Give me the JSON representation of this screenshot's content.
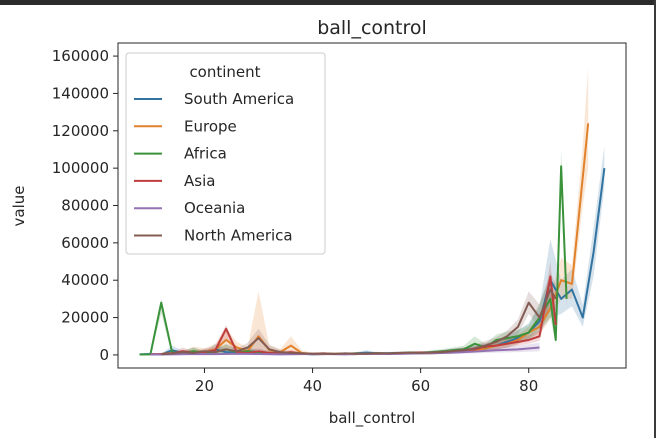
{
  "chart_data": {
    "type": "line",
    "title": "ball_control",
    "xlabel": "ball_control",
    "ylabel": "value",
    "xlim": [
      4,
      98
    ],
    "ylim": [
      -7000,
      167000
    ],
    "xticks": [
      20,
      40,
      60,
      80
    ],
    "yticks": [
      0,
      20000,
      40000,
      60000,
      80000,
      100000,
      120000,
      140000,
      160000
    ],
    "ytick_labels": [
      "0",
      "20000",
      "40000",
      "60000",
      "80000",
      "100000",
      "120000",
      "140000",
      "160000"
    ],
    "grid": false,
    "legend": {
      "title": "continent",
      "placement": "top-left"
    },
    "series": [
      {
        "name": "South America",
        "color": "#3274a1",
        "x": [
          8,
          10,
          12,
          14,
          16,
          18,
          20,
          22,
          24,
          26,
          28,
          30,
          32,
          34,
          36,
          38,
          40,
          42,
          44,
          46,
          48,
          50,
          52,
          54,
          56,
          58,
          60,
          62,
          64,
          66,
          68,
          70,
          72,
          74,
          76,
          78,
          80,
          82,
          84,
          86,
          88,
          90,
          92,
          94
        ],
        "y": [
          300,
          500,
          200,
          2500,
          1000,
          2000,
          800,
          3000,
          1500,
          1000,
          2000,
          1500,
          1000,
          800,
          500,
          700,
          300,
          500,
          600,
          400,
          800,
          1200,
          800,
          900,
          1000,
          800,
          1000,
          1200,
          1500,
          2000,
          2500,
          3000,
          4000,
          5000,
          7000,
          9000,
          12000,
          18000,
          40000,
          30000,
          35000,
          20000,
          55000,
          100000
        ],
        "band_lo": [
          0,
          0,
          0,
          500,
          200,
          500,
          200,
          1000,
          500,
          200,
          500,
          300,
          200,
          200,
          100,
          200,
          100,
          100,
          200,
          100,
          200,
          400,
          300,
          300,
          300,
          300,
          400,
          500,
          600,
          900,
          1200,
          1500,
          2500,
          3000,
          4000,
          6000,
          8000,
          12000,
          20000,
          22000,
          26000,
          15000,
          42000,
          90000
        ],
        "band_hi": [
          800,
          1200,
          600,
          5000,
          2200,
          4000,
          1800,
          6000,
          3000,
          2000,
          3500,
          3000,
          2000,
          1500,
          1000,
          1400,
          700,
          1000,
          1100,
          900,
          1500,
          2500,
          1500,
          1600,
          1800,
          1500,
          1800,
          2200,
          2500,
          3500,
          4000,
          5000,
          6000,
          7500,
          10000,
          13000,
          17000,
          26000,
          62000,
          40000,
          46000,
          27000,
          68000,
          112000
        ]
      },
      {
        "name": "Europe",
        "color": "#e1812c",
        "x": [
          10,
          12,
          14,
          16,
          18,
          20,
          22,
          24,
          26,
          28,
          30,
          32,
          34,
          36,
          38,
          40,
          42,
          44,
          46,
          48,
          50,
          52,
          54,
          56,
          58,
          60,
          62,
          64,
          66,
          68,
          70,
          72,
          74,
          76,
          78,
          80,
          82,
          84,
          86,
          88,
          90,
          91
        ],
        "y": [
          300,
          500,
          1000,
          800,
          2000,
          1500,
          3000,
          8000,
          4000,
          2000,
          10000,
          2500,
          1500,
          5000,
          1000,
          500,
          400,
          600,
          500,
          400,
          600,
          500,
          700,
          600,
          800,
          1000,
          900,
          1200,
          1500,
          2000,
          2500,
          3500,
          5000,
          6000,
          8000,
          12000,
          15000,
          25000,
          40000,
          38000,
          95000,
          124000
        ],
        "band_lo": [
          0,
          0,
          200,
          200,
          500,
          500,
          1000,
          3000,
          1500,
          500,
          3000,
          800,
          400,
          1500,
          200,
          100,
          100,
          200,
          100,
          100,
          200,
          100,
          200,
          200,
          300,
          400,
          400,
          500,
          700,
          1000,
          1300,
          2000,
          3000,
          3800,
          5500,
          9000,
          11000,
          19000,
          30000,
          30000,
          80000,
          100000
        ],
        "band_hi": [
          700,
          1000,
          2500,
          2000,
          4500,
          3500,
          6000,
          14000,
          7000,
          4000,
          34000,
          5000,
          3000,
          10000,
          2500,
          1000,
          900,
          1200,
          1000,
          900,
          1100,
          1000,
          1200,
          1100,
          1400,
          1700,
          1500,
          2000,
          2500,
          3200,
          4000,
          5500,
          7000,
          8500,
          11000,
          15000,
          20000,
          32000,
          52000,
          48000,
          112000,
          154000
        ]
      },
      {
        "name": "Africa",
        "color": "#3a923a",
        "x": [
          8,
          10,
          12,
          14,
          16,
          18,
          20,
          22,
          24,
          26,
          28,
          30,
          32,
          34,
          36,
          38,
          40,
          42,
          44,
          46,
          48,
          50,
          52,
          54,
          56,
          58,
          60,
          62,
          64,
          66,
          68,
          70,
          72,
          74,
          76,
          78,
          80,
          82,
          84,
          85,
          86,
          87
        ],
        "y": [
          200,
          300,
          28000,
          1500,
          800,
          2000,
          1000,
          1500,
          3000,
          1500,
          2000,
          1000,
          800,
          1200,
          600,
          800,
          500,
          700,
          500,
          600,
          800,
          600,
          900,
          700,
          1000,
          1200,
          1000,
          1500,
          2000,
          2500,
          3000,
          6000,
          4000,
          8000,
          9000,
          10000,
          12000,
          20000,
          30000,
          8000,
          101000,
          30000
        ],
        "band_lo": [
          0,
          0,
          22000,
          400,
          200,
          600,
          300,
          500,
          1000,
          500,
          600,
          300,
          200,
          400,
          100,
          200,
          100,
          200,
          100,
          200,
          200,
          200,
          300,
          200,
          300,
          400,
          400,
          600,
          800,
          1000,
          1300,
          3000,
          2500,
          5000,
          6000,
          7000,
          8500,
          14000,
          20000,
          6000,
          90000,
          25000
        ],
        "band_hi": [
          500,
          700,
          30000,
          3000,
          1800,
          4000,
          2000,
          3000,
          6000,
          3000,
          3800,
          2000,
          1800,
          2500,
          1300,
          1600,
          1000,
          1400,
          1000,
          1200,
          1500,
          1200,
          1600,
          1400,
          1800,
          2000,
          1800,
          2500,
          3200,
          4000,
          5000,
          10000,
          6000,
          11000,
          12500,
          13500,
          16000,
          28000,
          42000,
          10000,
          110000,
          38000
        ]
      },
      {
        "name": "Asia",
        "color": "#c03d3e",
        "x": [
          10,
          12,
          14,
          16,
          18,
          20,
          22,
          24,
          26,
          28,
          30,
          32,
          34,
          36,
          38,
          40,
          42,
          44,
          46,
          48,
          50,
          52,
          54,
          56,
          58,
          60,
          62,
          64,
          66,
          68,
          70,
          72,
          74,
          76,
          78,
          80,
          82,
          84,
          85
        ],
        "y": [
          300,
          500,
          800,
          2000,
          1000,
          1500,
          2500,
          14000,
          1500,
          1000,
          2000,
          1000,
          800,
          1500,
          700,
          600,
          800,
          500,
          700,
          600,
          500,
          800,
          600,
          900,
          1000,
          1200,
          1000,
          1500,
          2000,
          2500,
          3000,
          4500,
          5000,
          6000,
          7000,
          8000,
          10000,
          42000,
          16000
        ],
        "band_lo": [
          0,
          0,
          200,
          500,
          300,
          500,
          800,
          8000,
          500,
          300,
          700,
          300,
          200,
          500,
          200,
          100,
          200,
          100,
          200,
          200,
          100,
          200,
          200,
          300,
          300,
          400,
          400,
          600,
          800,
          1000,
          1400,
          2500,
          3000,
          4000,
          5000,
          6000,
          7500,
          30000,
          10000
        ],
        "band_hi": [
          700,
          1000,
          1500,
          4000,
          2000,
          3000,
          5000,
          16000,
          3000,
          2000,
          3500,
          2000,
          1500,
          2800,
          1300,
          1100,
          1500,
          1000,
          1300,
          1100,
          1000,
          1500,
          1100,
          1600,
          1800,
          2200,
          1800,
          2500,
          3200,
          4000,
          4500,
          6500,
          7000,
          8500,
          9500,
          10500,
          13500,
          50000,
          22000
        ]
      },
      {
        "name": "Oceania",
        "color": "#9372b2",
        "x": [
          10,
          14,
          18,
          22,
          26,
          30,
          34,
          38,
          42,
          46,
          50,
          54,
          58,
          62,
          66,
          70,
          74,
          78,
          82
        ],
        "y": [
          200,
          300,
          500,
          400,
          600,
          500,
          300,
          400,
          500,
          300,
          600,
          500,
          700,
          900,
          1200,
          1800,
          2500,
          3000,
          4000
        ],
        "band_lo": [
          0,
          100,
          100,
          100,
          200,
          100,
          100,
          100,
          100,
          100,
          200,
          200,
          200,
          300,
          500,
          800,
          1200,
          1500,
          2000
        ],
        "band_hi": [
          500,
          600,
          1000,
          900,
          1200,
          1000,
          700,
          800,
          1000,
          700,
          1200,
          1000,
          1400,
          1600,
          2200,
          3000,
          4000,
          5000,
          6500
        ]
      },
      {
        "name": "North America",
        "color": "#845b53",
        "x": [
          12,
          14,
          16,
          18,
          20,
          22,
          24,
          26,
          28,
          30,
          32,
          34,
          36,
          38,
          40,
          42,
          44,
          46,
          48,
          50,
          52,
          54,
          56,
          58,
          60,
          62,
          64,
          66,
          68,
          70,
          72,
          74,
          76,
          78,
          80,
          82,
          84,
          85
        ],
        "y": [
          300,
          800,
          1500,
          1000,
          2000,
          1500,
          3000,
          2000,
          4000,
          9000,
          3000,
          1500,
          1000,
          800,
          600,
          700,
          500,
          800,
          600,
          700,
          900,
          800,
          1000,
          1200,
          1100,
          1300,
          1500,
          2000,
          2500,
          3500,
          5000,
          7000,
          10000,
          15000,
          28000,
          20000,
          35000,
          30000
        ],
        "band_lo": [
          0,
          200,
          400,
          300,
          600,
          500,
          1000,
          700,
          1500,
          3000,
          1000,
          400,
          300,
          200,
          100,
          200,
          100,
          200,
          200,
          200,
          300,
          300,
          300,
          400,
          400,
          500,
          600,
          800,
          1000,
          1700,
          2800,
          4500,
          7000,
          11000,
          22000,
          14000,
          26000,
          22000
        ],
        "band_hi": [
          700,
          1500,
          3000,
          2000,
          3500,
          3000,
          5500,
          3500,
          6500,
          14000,
          5500,
          3000,
          2000,
          1600,
          1100,
          1300,
          1000,
          1500,
          1100,
          1300,
          1600,
          1400,
          1800,
          2000,
          1900,
          2200,
          2500,
          3200,
          4000,
          5500,
          7500,
          9500,
          13000,
          19000,
          34000,
          27000,
          44000,
          38000
        ]
      }
    ]
  }
}
